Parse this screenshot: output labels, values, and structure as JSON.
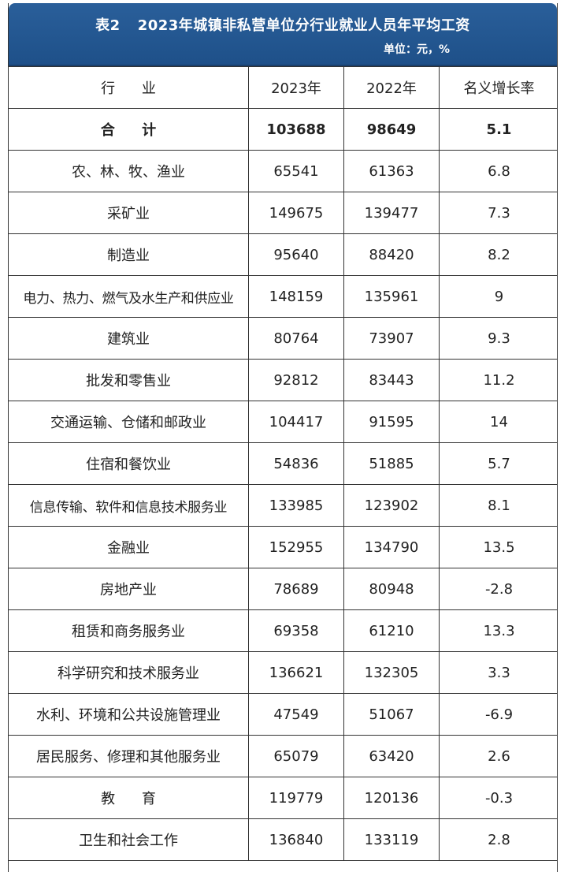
{
  "header": {
    "table_no": "表2",
    "title": "2023年城镇非私营单位分行业就业人员年平均工资",
    "unit": "单位：元，%"
  },
  "columns": {
    "industry": "行  业",
    "y2023": "2023年",
    "y2022": "2022年",
    "growth": "名义增长率"
  },
  "total": {
    "name": "合  计",
    "y2023": "103688",
    "y2022": "98649",
    "growth": "5.1"
  },
  "rows": [
    {
      "name": "农、林、牧、渔业",
      "y2023": "65541",
      "y2022": "61363",
      "growth": "6.8"
    },
    {
      "name": "采矿业",
      "y2023": "149675",
      "y2022": "139477",
      "growth": "7.3"
    },
    {
      "name": "制造业",
      "y2023": "95640",
      "y2022": "88420",
      "growth": "8.2"
    },
    {
      "name": "电力、热力、燃气及水生产和供应业",
      "y2023": "148159",
      "y2022": "135961",
      "growth": "9"
    },
    {
      "name": "建筑业",
      "y2023": "80764",
      "y2022": "73907",
      "growth": "9.3"
    },
    {
      "name": "批发和零售业",
      "y2023": "92812",
      "y2022": "83443",
      "growth": "11.2"
    },
    {
      "name": "交通运输、仓储和邮政业",
      "y2023": "104417",
      "y2022": "91595",
      "growth": "14"
    },
    {
      "name": "住宿和餐饮业",
      "y2023": "54836",
      "y2022": "51885",
      "growth": "5.7"
    },
    {
      "name": "信息传输、软件和信息技术服务业",
      "y2023": "133985",
      "y2022": "123902",
      "growth": "8.1"
    },
    {
      "name": "金融业",
      "y2023": "152955",
      "y2022": "134790",
      "growth": "13.5"
    },
    {
      "name": "房地产业",
      "y2023": "78689",
      "y2022": "80948",
      "growth": "-2.8"
    },
    {
      "name": "租赁和商务服务业",
      "y2023": "69358",
      "y2022": "61210",
      "growth": "13.3"
    },
    {
      "name": "科学研究和技术服务业",
      "y2023": "136621",
      "y2022": "132305",
      "growth": "3.3"
    },
    {
      "name": "水利、环境和公共设施管理业",
      "y2023": "47549",
      "y2022": "51067",
      "growth": "-6.9"
    },
    {
      "name": "居民服务、修理和其他服务业",
      "y2023": "65079",
      "y2022": "63420",
      "growth": "2.6"
    },
    {
      "name": "教  育",
      "y2023": "119779",
      "y2022": "120136",
      "growth": "-0.3"
    },
    {
      "name": "卫生和社会工作",
      "y2023": "136840",
      "y2022": "133119",
      "growth": "2.8"
    }
  ]
}
